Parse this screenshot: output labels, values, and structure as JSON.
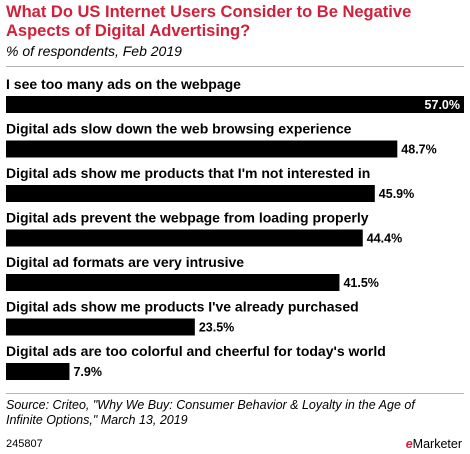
{
  "title": "What Do US Internet Users Consider to Be Negative Aspects of Digital Advertising?",
  "subtitle": "% of respondents, Feb 2019",
  "source": "Source: Criteo, \"Why We Buy: Consumer Behavior & Loyalty in the Age of Infinite Options,\" March 13, 2019",
  "chart_id": "245807",
  "logo": "eMarketer",
  "colors": {
    "title": "#d2203a",
    "bar": "#000000",
    "label_inside": "#ffffff",
    "label_outside": "#000000"
  },
  "chart_data": {
    "type": "bar",
    "orientation": "horizontal",
    "categories": [
      "I see too many ads on the webpage",
      "Digital ads slow down the web browsing experience",
      "Digital ads show me products that I'm not interested in",
      "Digital ads prevent the webpage from loading properly",
      "Digital ad formats are very intrusive",
      "Digital ads show me products I've already purchased",
      "Digital ads are too colorful and cheerful for today's world"
    ],
    "values": [
      57.0,
      48.7,
      45.9,
      44.4,
      41.5,
      23.5,
      7.9
    ],
    "value_labels": [
      "57.0%",
      "48.7%",
      "45.9%",
      "44.4%",
      "41.5%",
      "23.5%",
      "7.9%"
    ],
    "xlim": [
      0,
      57.0
    ],
    "grid": false,
    "legend": "none"
  }
}
